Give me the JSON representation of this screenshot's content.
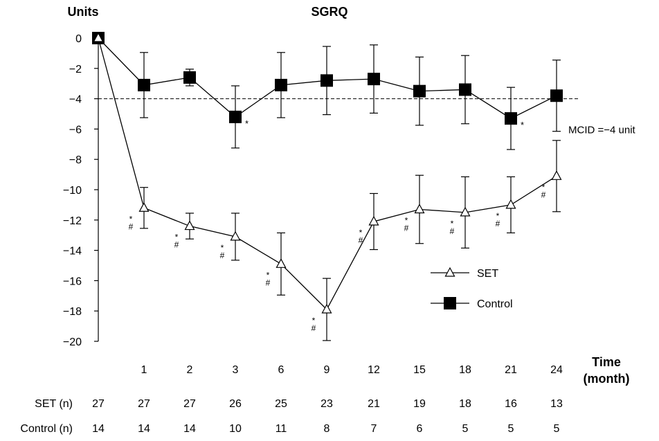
{
  "chart_data": {
    "type": "line",
    "title": "SGRQ",
    "ylabel": "Units",
    "xlabel": "Time\n(month)",
    "ylim": [
      -20,
      0
    ],
    "y_ticks": [
      0,
      -2,
      -4,
      -6,
      -8,
      -10,
      -12,
      -14,
      -16,
      -18,
      -20
    ],
    "y_tick_labels": [
      "0",
      "−2",
      "−4",
      "−6",
      "−8",
      "−10",
      "−12",
      "−14",
      "−16",
      "−18",
      "−20"
    ],
    "x_tick_labels": [
      "1",
      "2",
      "3",
      "6",
      "9",
      "12",
      "15",
      "18",
      "21",
      "24"
    ],
    "grid": false,
    "legend_position": "right",
    "reference_line": {
      "y": -4,
      "label": "MCID =−4 unit",
      "style": "dashed"
    },
    "series": [
      {
        "name": "SET",
        "marker": "open-triangle",
        "x": [
          0,
          1,
          2,
          3,
          6,
          9,
          12,
          15,
          18,
          21,
          24
        ],
        "y": [
          0,
          -11.2,
          -12.4,
          -13.1,
          -14.9,
          -17.9,
          -12.1,
          -11.3,
          -11.5,
          -11.0,
          -9.1
        ],
        "error": [
          0,
          1.35,
          0.85,
          1.55,
          2.05,
          2.05,
          1.85,
          2.25,
          2.35,
          1.85,
          2.35
        ],
        "annotations": [
          "",
          "*\n#",
          "*\n#",
          "*\n#",
          "*\n#",
          "*\n#",
          "*\n#",
          "*\n#",
          "*\n#",
          "*\n#",
          "*\n#"
        ]
      },
      {
        "name": "Control",
        "marker": "filled-square",
        "x": [
          0,
          1,
          2,
          3,
          6,
          9,
          12,
          15,
          18,
          21,
          24
        ],
        "y": [
          0,
          -3.1,
          -2.6,
          -5.2,
          -3.1,
          -2.8,
          -2.7,
          -3.5,
          -3.4,
          -5.3,
          -3.8
        ],
        "error": [
          0,
          2.15,
          0.55,
          2.05,
          2.15,
          2.25,
          2.25,
          2.25,
          2.25,
          2.05,
          2.35
        ],
        "annotations": [
          "",
          "",
          "",
          "*",
          "",
          "",
          "",
          "",
          "",
          "*",
          ""
        ]
      }
    ],
    "n_table": {
      "time_labels": [
        "27",
        "27",
        "27",
        "26",
        "25",
        "23",
        "21",
        "19",
        "18",
        "16",
        "13"
      ],
      "rows": [
        {
          "label": "SET (n)",
          "values": [
            "27",
            "27",
            "27",
            "26",
            "25",
            "23",
            "21",
            "19",
            "18",
            "16",
            "13"
          ]
        },
        {
          "label": "Control (n)",
          "values": [
            "14",
            "14",
            "14",
            "10",
            "11",
            "8",
            "7",
            "6",
            "5",
            "5",
            "5"
          ]
        }
      ]
    }
  }
}
